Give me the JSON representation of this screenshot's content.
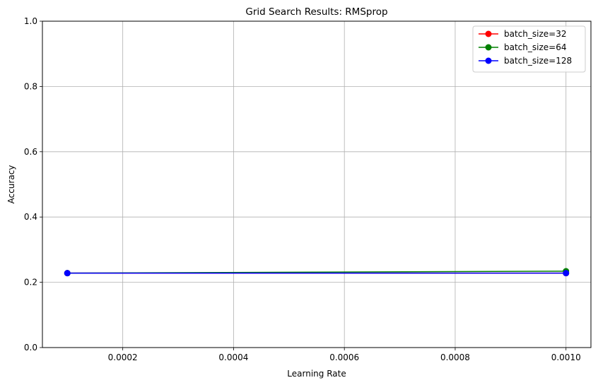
{
  "chart_data": {
    "type": "line",
    "title": "Grid Search Results: RMSprop",
    "xlabel": "Learning Rate",
    "ylabel": "Accuracy",
    "xlim": [
      5.5e-05,
      0.001045
    ],
    "ylim": [
      0,
      1
    ],
    "x_ticks": [
      0.0002,
      0.0004,
      0.0006,
      0.0008,
      0.001
    ],
    "x_tick_labels": [
      "0.0002",
      "0.0004",
      "0.0006",
      "0.0008",
      "0.0010"
    ],
    "y_ticks": [
      0.0,
      0.2,
      0.4,
      0.6,
      0.8,
      1.0
    ],
    "y_tick_labels": [
      "0.0",
      "0.2",
      "0.4",
      "0.6",
      "0.8",
      "1.0"
    ],
    "grid": true,
    "legend_position": "top-right",
    "x": [
      0.0001,
      0.001
    ],
    "series": [
      {
        "name": "batch_size=32",
        "color": "#ff0000",
        "values": [
          0.228,
          0.228
        ]
      },
      {
        "name": "batch_size=64",
        "color": "#008000",
        "values": [
          0.228,
          0.234
        ]
      },
      {
        "name": "batch_size=128",
        "color": "#0000ff",
        "values": [
          0.228,
          0.228
        ]
      }
    ]
  }
}
